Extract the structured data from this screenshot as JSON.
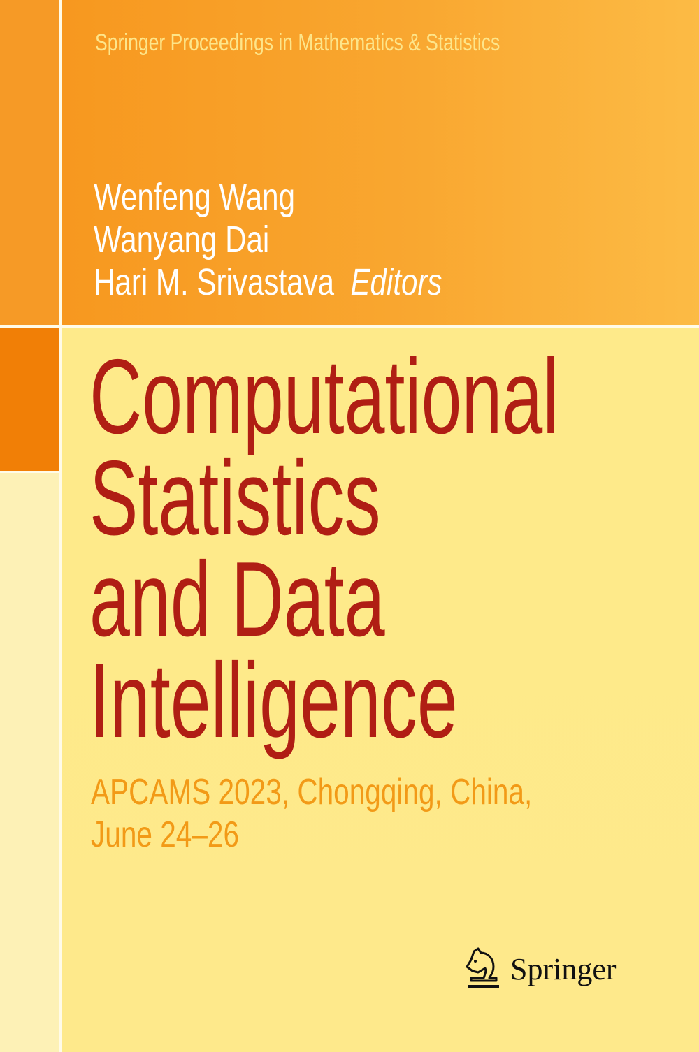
{
  "cover": {
    "series": "Springer Proceedings in Mathematics & Statistics",
    "editors": [
      "Wenfeng Wang",
      "Wanyang Dai",
      "Hari M. Srivastava"
    ],
    "editors_role": "Editors",
    "title_lines": [
      "Computational",
      "Statistics",
      "and Data",
      "Intelligence"
    ],
    "subtitle_lines": [
      "APCAMS 2023, Chongqing, China,",
      "June 24–26"
    ],
    "publisher": "Springer",
    "publisher_icon": "springer-horse-icon"
  },
  "colors": {
    "title": "#b01e14",
    "subtitle": "#f29a17",
    "top_band": "#f7981f",
    "accent_block": "#f17f06",
    "background": "#feeb8c"
  }
}
